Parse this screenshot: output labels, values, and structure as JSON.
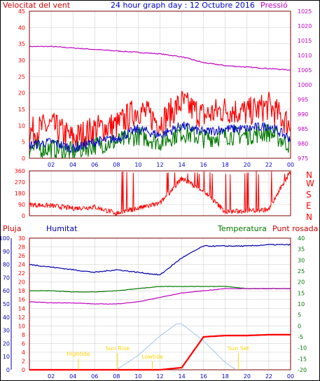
{
  "header": {
    "left": "Velocitat del vent",
    "center": "24 hour graph day : 12 Octubre 2016",
    "right": "Pressió"
  },
  "colors": {
    "wind": "#ff0000",
    "gust": "#ff0000",
    "avg": "#0000c8",
    "temp": "#007800",
    "dew": "#c000c0",
    "pressure": "#c000c0",
    "humidity": "#0000aa",
    "rain": "#ff0000",
    "solar": "#a0c8f0",
    "events": "#ffd400",
    "frame": "#800000",
    "grid": "#c8c8c8"
  },
  "chart_data": [
    {
      "type": "line",
      "title": "24 hour graph day : 12 Octubre 2016",
      "ylabel": "Velocitat del vent",
      "y2label": "Pressió",
      "x_ticks": [
        "02",
        "04",
        "06",
        "08",
        "10",
        "12",
        "14",
        "16",
        "18",
        "20",
        "22",
        "00"
      ],
      "ylim": [
        0,
        45
      ],
      "y_ticks": [
        "0",
        "5",
        "10",
        "15",
        "20",
        "25",
        "30",
        "35",
        "40",
        "45"
      ],
      "y2lim": [
        975,
        1025
      ],
      "y2_ticks": [
        "975",
        "980",
        "985",
        "990",
        "995",
        "1000",
        "1005",
        "1010",
        "1015",
        "1020",
        "1025"
      ],
      "series": [
        {
          "name": "pressure",
          "axis": "right",
          "x": [
            0,
            2,
            4,
            6,
            8,
            10,
            12,
            14,
            16,
            18,
            20,
            22,
            24
          ],
          "values": [
            1013,
            1013,
            1012.5,
            1012,
            1011.5,
            1011,
            1010.5,
            1009.5,
            1007.5,
            1006.5,
            1006,
            1005.5,
            1005
          ]
        },
        {
          "name": "gust",
          "x": [
            0,
            2,
            4,
            6,
            8,
            10,
            12,
            14,
            16,
            18,
            20,
            22,
            24
          ],
          "values": [
            8,
            10,
            6,
            9,
            10,
            15,
            11,
            17,
            13,
            15,
            14,
            16,
            10
          ]
        },
        {
          "name": "avg",
          "x": [
            0,
            2,
            4,
            6,
            8,
            10,
            12,
            14,
            16,
            18,
            20,
            22,
            24
          ],
          "values": [
            4,
            5,
            3,
            5,
            6,
            9,
            7,
            10,
            8,
            9,
            9,
            10,
            6
          ]
        },
        {
          "name": "wind",
          "x": [
            0,
            2,
            4,
            6,
            8,
            10,
            12,
            14,
            16,
            18,
            20,
            22,
            24
          ],
          "values": [
            3,
            3,
            2,
            4,
            5,
            7,
            5,
            8,
            6,
            7,
            7,
            8,
            4
          ]
        }
      ]
    },
    {
      "type": "scatter",
      "ylabel_right": [
        "N",
        "W",
        "S",
        "E",
        "N"
      ],
      "ylim": [
        0,
        360
      ],
      "y_ticks": [
        "0",
        "90",
        "180",
        "270",
        "360"
      ],
      "x_ticks": [
        "02",
        "04",
        "06",
        "08",
        "10",
        "12",
        "14",
        "16",
        "18",
        "20",
        "22",
        "00"
      ],
      "series": [
        {
          "name": "direction",
          "x": [
            0,
            2,
            4,
            6,
            8,
            10,
            12,
            14,
            16,
            18,
            20,
            22,
            24
          ],
          "values": [
            90,
            80,
            60,
            70,
            20,
            60,
            100,
            300,
            200,
            30,
            40,
            50,
            360
          ]
        }
      ]
    },
    {
      "type": "line",
      "labels": [
        "Pluja",
        "Humitat",
        "Temperatura",
        "Punt rosada"
      ],
      "x_ticks": [
        "02",
        "04",
        "06",
        "08",
        "10",
        "12",
        "14",
        "16",
        "18",
        "20",
        "22",
        "00"
      ],
      "humidity_ticks": [
        "0",
        "10",
        "20",
        "30",
        "40",
        "50",
        "60",
        "70",
        "80",
        "90",
        "100"
      ],
      "rain_ticks": [
        "0",
        "2",
        "4",
        "6",
        "8",
        "10",
        "12",
        "14",
        "16",
        "18",
        "20",
        "22",
        "24",
        "26",
        "28",
        "30"
      ],
      "temp_ticks": [
        "-20",
        "-15",
        "-10",
        "-5",
        "0",
        "5",
        "10",
        "15",
        "20",
        "25",
        "30",
        "35",
        "40"
      ],
      "annotations": [
        "Sun Rise",
        "Sun Set",
        "Lowtide",
        "Hightide"
      ],
      "series": [
        {
          "name": "Humitat",
          "x": [
            0,
            2,
            4,
            6,
            8,
            10,
            12,
            14,
            16,
            18,
            20,
            22,
            24
          ],
          "values": [
            80,
            78,
            76,
            74,
            76,
            74,
            72,
            85,
            94,
            94,
            94,
            95,
            95
          ]
        },
        {
          "name": "Temperatura",
          "x": [
            0,
            2,
            4,
            6,
            8,
            10,
            12,
            14,
            16,
            18,
            20,
            22,
            24
          ],
          "values": [
            16,
            16,
            15.5,
            15.5,
            16,
            17,
            18,
            18,
            18,
            18,
            17,
            17,
            17
          ]
        },
        {
          "name": "Punt rosada",
          "x": [
            0,
            2,
            4,
            6,
            8,
            10,
            12,
            14,
            16,
            18,
            20,
            22,
            24
          ],
          "values": [
            11,
            10.5,
            10.5,
            10,
            10,
            11,
            13,
            15,
            16,
            17,
            17,
            17,
            17
          ]
        },
        {
          "name": "Pluja",
          "x": [
            0,
            2,
            4,
            6,
            8,
            10,
            12,
            14,
            16,
            18,
            20,
            22,
            24
          ],
          "values": [
            0,
            0,
            0,
            0,
            0,
            0,
            0,
            0.5,
            7.5,
            7.8,
            7.8,
            8,
            8
          ]
        },
        {
          "name": "solar",
          "x": [
            8,
            10,
            12,
            13.5,
            14,
            16,
            18,
            19
          ],
          "values": [
            0,
            3,
            7,
            9.5,
            9.5,
            6,
            1.5,
            0
          ]
        }
      ]
    }
  ]
}
